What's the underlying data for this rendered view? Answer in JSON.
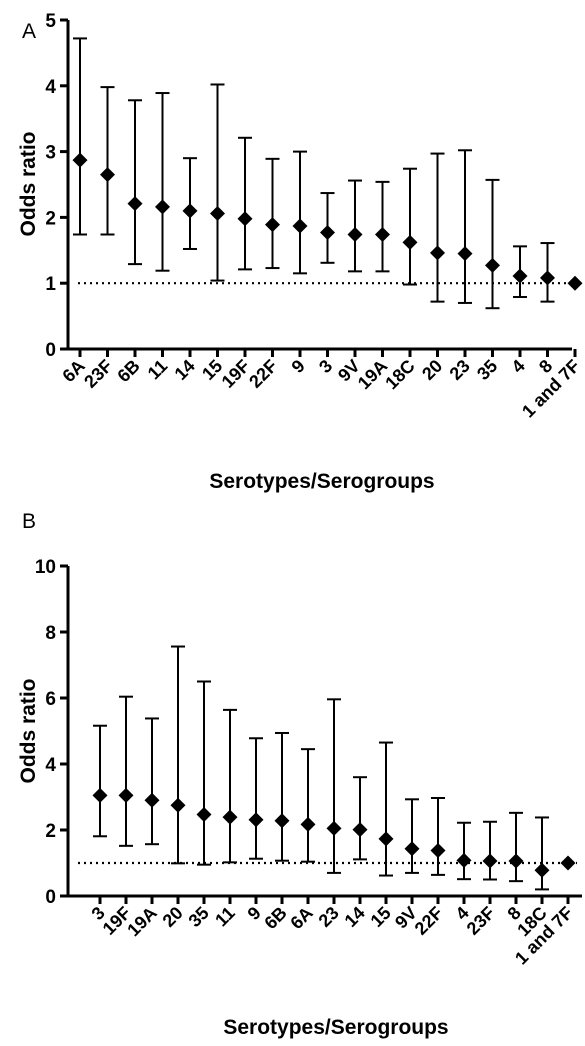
{
  "chart_data": [
    {
      "type": "scatter",
      "panel_label": "A",
      "xlabel": "Serotypes/Serogroups",
      "ylabel": "Odds ratio",
      "ylim": [
        0,
        5
      ],
      "yticks": [
        0,
        1,
        2,
        3,
        4,
        5
      ],
      "reference_line": 1,
      "grid": false,
      "categories": [
        "6A",
        "23F",
        "6B",
        "11",
        "14",
        "15",
        "19F",
        "22F",
        "9",
        "3",
        "9V",
        "19A",
        "18C",
        "20",
        "23",
        "35",
        "4",
        "8",
        "1 and 7F"
      ],
      "values": [
        2.87,
        2.65,
        2.21,
        2.16,
        2.1,
        2.06,
        1.98,
        1.89,
        1.87,
        1.77,
        1.74,
        1.74,
        1.62,
        1.46,
        1.45,
        1.27,
        1.11,
        1.08,
        1.0
      ],
      "lower": [
        1.74,
        1.74,
        1.29,
        1.19,
        1.52,
        1.04,
        1.21,
        1.23,
        1.15,
        1.31,
        1.18,
        1.18,
        0.98,
        0.72,
        0.7,
        0.62,
        0.79,
        0.72,
        1.0
      ],
      "upper": [
        4.72,
        3.98,
        3.78,
        3.89,
        2.9,
        4.02,
        3.21,
        2.89,
        3.0,
        2.37,
        2.56,
        2.54,
        2.74,
        2.97,
        3.02,
        2.57,
        1.56,
        1.61,
        1.0
      ]
    },
    {
      "type": "scatter",
      "panel_label": "B",
      "xlabel": "Serotypes/Serogroups",
      "ylabel": "Odds ratio",
      "ylim": [
        0,
        10
      ],
      "yticks": [
        0,
        2,
        4,
        6,
        8,
        10
      ],
      "reference_line": 1,
      "grid": false,
      "categories": [
        "3",
        "19F",
        "19A",
        "20",
        "35",
        "11",
        "9",
        "6B",
        "6A",
        "23",
        "14",
        "15",
        "9V",
        "22F",
        "4",
        "23F",
        "8",
        "18C",
        "1 and 7F"
      ],
      "values": [
        3.05,
        3.05,
        2.9,
        2.75,
        2.47,
        2.39,
        2.31,
        2.28,
        2.17,
        2.05,
        2.01,
        1.73,
        1.43,
        1.38,
        1.08,
        1.06,
        1.06,
        0.78,
        1.0
      ],
      "lower": [
        1.81,
        1.52,
        1.57,
        0.99,
        0.95,
        1.02,
        1.13,
        1.07,
        1.04,
        0.7,
        1.11,
        0.62,
        0.7,
        0.64,
        0.51,
        0.5,
        0.45,
        0.2,
        1.0
      ],
      "upper": [
        5.16,
        6.04,
        5.38,
        7.56,
        6.5,
        5.64,
        4.78,
        4.94,
        4.45,
        5.96,
        3.6,
        4.65,
        2.93,
        2.97,
        2.22,
        2.25,
        2.52,
        2.38,
        1.0
      ]
    }
  ]
}
